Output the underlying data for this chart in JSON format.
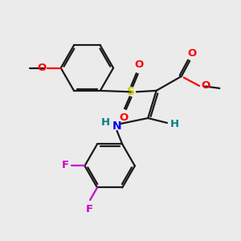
{
  "background_color": "#ebebeb",
  "bond_color": "#1a1a1a",
  "atom_colors": {
    "O": "#ff0000",
    "S": "#cccc00",
    "N": "#0000ee",
    "F": "#cc00cc",
    "H_label": "#008080",
    "C_implicit": "#1a1a1a"
  },
  "figsize": [
    3.0,
    3.0
  ],
  "dpi": 100
}
